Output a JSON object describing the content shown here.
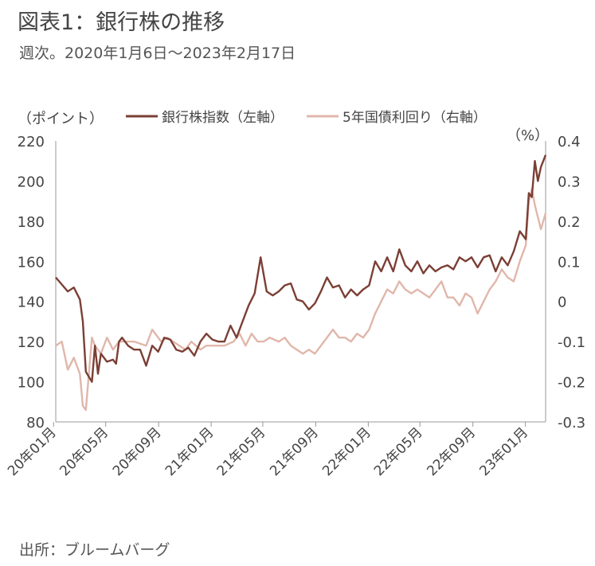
{
  "header": {
    "title": "図表1：銀行株の推移",
    "subtitle": "週次。2020年1月6日～2023年2月17日"
  },
  "footer": {
    "source": "出所：ブルームバーグ"
  },
  "colors": {
    "bank_index": "#7b3f35",
    "jgb_5y": "#e0b7ab",
    "axis": "#999999",
    "text": "#444444"
  },
  "chart_data": {
    "type": "line",
    "x_start": "2020-01-06",
    "x_end": "2023-02-17",
    "x_ticks": [
      "20年01月",
      "20年05月",
      "20年09月",
      "21年01月",
      "21年05月",
      "21年09月",
      "22年01月",
      "22年05月",
      "22年09月",
      "23年01月"
    ],
    "y_left": {
      "label": "（ポイント）",
      "range": [
        80,
        220
      ],
      "ticks": [
        "220",
        "200",
        "180",
        "160",
        "140",
        "120",
        "100",
        "80"
      ]
    },
    "y_right": {
      "label": "（%）",
      "range": [
        -0.3,
        0.4
      ],
      "ticks": [
        "0.4",
        "0.3",
        "0.2",
        "0.1",
        "0",
        "-0.1",
        "-0.2",
        "-0.3"
      ]
    },
    "legend": [
      "銀行株指数（左軸）",
      "5年国債利回り（右軸）"
    ],
    "series": [
      {
        "name": "銀行株指数（左軸）",
        "axis": "left",
        "points": [
          [
            "2020-01-06",
            152
          ],
          [
            "2020-02-03",
            145
          ],
          [
            "2020-02-17",
            147
          ],
          [
            "2020-03-02",
            141
          ],
          [
            "2020-03-09",
            130
          ],
          [
            "2020-03-16",
            105
          ],
          [
            "2020-03-30",
            100
          ],
          [
            "2020-04-06",
            118
          ],
          [
            "2020-04-13",
            104
          ],
          [
            "2020-04-20",
            114
          ],
          [
            "2020-05-04",
            110
          ],
          [
            "2020-05-18",
            111
          ],
          [
            "2020-05-25",
            109
          ],
          [
            "2020-06-01",
            120
          ],
          [
            "2020-06-08",
            122
          ],
          [
            "2020-06-22",
            118
          ],
          [
            "2020-07-06",
            116
          ],
          [
            "2020-07-20",
            116
          ],
          [
            "2020-08-03",
            108
          ],
          [
            "2020-08-17",
            118
          ],
          [
            "2020-08-31",
            115
          ],
          [
            "2020-09-14",
            122
          ],
          [
            "2020-09-28",
            121
          ],
          [
            "2020-10-12",
            116
          ],
          [
            "2020-10-26",
            115
          ],
          [
            "2020-11-09",
            117
          ],
          [
            "2020-11-23",
            113
          ],
          [
            "2020-12-07",
            120
          ],
          [
            "2020-12-21",
            124
          ],
          [
            "2021-01-04",
            121
          ],
          [
            "2021-01-18",
            120
          ],
          [
            "2021-02-01",
            120
          ],
          [
            "2021-02-15",
            128
          ],
          [
            "2021-03-01",
            122
          ],
          [
            "2021-03-15",
            130
          ],
          [
            "2021-03-29",
            138
          ],
          [
            "2021-04-12",
            144
          ],
          [
            "2021-04-26",
            162
          ],
          [
            "2021-05-10",
            145
          ],
          [
            "2021-05-24",
            143
          ],
          [
            "2021-06-07",
            145
          ],
          [
            "2021-06-21",
            148
          ],
          [
            "2021-07-05",
            149
          ],
          [
            "2021-07-19",
            141
          ],
          [
            "2021-08-02",
            140
          ],
          [
            "2021-08-16",
            136
          ],
          [
            "2021-08-30",
            139
          ],
          [
            "2021-09-13",
            145
          ],
          [
            "2021-09-27",
            152
          ],
          [
            "2021-10-11",
            147
          ],
          [
            "2021-10-25",
            148
          ],
          [
            "2021-11-08",
            142
          ],
          [
            "2021-11-22",
            146
          ],
          [
            "2021-12-06",
            143
          ],
          [
            "2021-12-20",
            146
          ],
          [
            "2022-01-03",
            148
          ],
          [
            "2022-01-17",
            160
          ],
          [
            "2022-01-31",
            155
          ],
          [
            "2022-02-14",
            162
          ],
          [
            "2022-02-28",
            155
          ],
          [
            "2022-03-14",
            166
          ],
          [
            "2022-03-28",
            158
          ],
          [
            "2022-04-11",
            155
          ],
          [
            "2022-04-25",
            160
          ],
          [
            "2022-05-09",
            154
          ],
          [
            "2022-05-23",
            158
          ],
          [
            "2022-06-06",
            155
          ],
          [
            "2022-06-20",
            157
          ],
          [
            "2022-07-04",
            158
          ],
          [
            "2022-07-18",
            156
          ],
          [
            "2022-08-01",
            162
          ],
          [
            "2022-08-15",
            160
          ],
          [
            "2022-08-29",
            162
          ],
          [
            "2022-09-12",
            157
          ],
          [
            "2022-09-26",
            162
          ],
          [
            "2022-10-10",
            163
          ],
          [
            "2022-10-24",
            155
          ],
          [
            "2022-11-07",
            162
          ],
          [
            "2022-11-21",
            158
          ],
          [
            "2022-12-05",
            165
          ],
          [
            "2022-12-19",
            175
          ],
          [
            "2023-01-02",
            171
          ],
          [
            "2023-01-09",
            194
          ],
          [
            "2023-01-16",
            192
          ],
          [
            "2023-01-23",
            210
          ],
          [
            "2023-01-30",
            200
          ],
          [
            "2023-02-06",
            207
          ],
          [
            "2023-02-17",
            213
          ]
        ]
      },
      {
        "name": "5年国債利回り（右軸）",
        "axis": "right",
        "points": [
          [
            "2020-01-06",
            -0.11
          ],
          [
            "2020-01-20",
            -0.1
          ],
          [
            "2020-02-03",
            -0.17
          ],
          [
            "2020-02-17",
            -0.14
          ],
          [
            "2020-03-02",
            -0.18
          ],
          [
            "2020-03-09",
            -0.26
          ],
          [
            "2020-03-16",
            -0.27
          ],
          [
            "2020-03-30",
            -0.09
          ],
          [
            "2020-04-06",
            -0.11
          ],
          [
            "2020-04-20",
            -0.13
          ],
          [
            "2020-05-04",
            -0.09
          ],
          [
            "2020-05-18",
            -0.12
          ],
          [
            "2020-06-01",
            -0.1
          ],
          [
            "2020-06-15",
            -0.1
          ],
          [
            "2020-07-06",
            -0.1
          ],
          [
            "2020-08-03",
            -0.11
          ],
          [
            "2020-08-17",
            -0.07
          ],
          [
            "2020-09-07",
            -0.1
          ],
          [
            "2020-09-21",
            -0.09
          ],
          [
            "2020-10-05",
            -0.1
          ],
          [
            "2020-10-19",
            -0.11
          ],
          [
            "2020-11-02",
            -0.12
          ],
          [
            "2020-11-16",
            -0.1
          ],
          [
            "2020-12-07",
            -0.12
          ],
          [
            "2020-12-21",
            -0.11
          ],
          [
            "2021-01-04",
            -0.11
          ],
          [
            "2021-02-01",
            -0.11
          ],
          [
            "2021-02-22",
            -0.1
          ],
          [
            "2021-03-08",
            -0.08
          ],
          [
            "2021-03-22",
            -0.11
          ],
          [
            "2021-04-05",
            -0.08
          ],
          [
            "2021-04-19",
            -0.1
          ],
          [
            "2021-05-03",
            -0.1
          ],
          [
            "2021-05-17",
            -0.09
          ],
          [
            "2021-06-07",
            -0.1
          ],
          [
            "2021-06-21",
            -0.09
          ],
          [
            "2021-07-05",
            -0.11
          ],
          [
            "2021-07-19",
            -0.12
          ],
          [
            "2021-08-02",
            -0.13
          ],
          [
            "2021-08-16",
            -0.12
          ],
          [
            "2021-08-30",
            -0.13
          ],
          [
            "2021-09-13",
            -0.11
          ],
          [
            "2021-09-27",
            -0.09
          ],
          [
            "2021-10-11",
            -0.07
          ],
          [
            "2021-10-25",
            -0.09
          ],
          [
            "2021-11-08",
            -0.09
          ],
          [
            "2021-11-22",
            -0.1
          ],
          [
            "2021-12-06",
            -0.08
          ],
          [
            "2021-12-20",
            -0.09
          ],
          [
            "2022-01-03",
            -0.07
          ],
          [
            "2022-01-17",
            -0.03
          ],
          [
            "2022-01-31",
            0.0
          ],
          [
            "2022-02-14",
            0.03
          ],
          [
            "2022-02-28",
            0.02
          ],
          [
            "2022-03-14",
            0.05
          ],
          [
            "2022-03-28",
            0.03
          ],
          [
            "2022-04-11",
            0.02
          ],
          [
            "2022-04-25",
            0.03
          ],
          [
            "2022-05-09",
            0.02
          ],
          [
            "2022-05-23",
            0.01
          ],
          [
            "2022-06-06",
            0.03
          ],
          [
            "2022-06-20",
            0.05
          ],
          [
            "2022-07-04",
            0.01
          ],
          [
            "2022-07-18",
            0.01
          ],
          [
            "2022-08-01",
            -0.01
          ],
          [
            "2022-08-15",
            0.02
          ],
          [
            "2022-08-29",
            0.01
          ],
          [
            "2022-09-12",
            -0.03
          ],
          [
            "2022-09-26",
            0.0
          ],
          [
            "2022-10-10",
            0.03
          ],
          [
            "2022-10-24",
            0.05
          ],
          [
            "2022-11-07",
            0.08
          ],
          [
            "2022-11-21",
            0.06
          ],
          [
            "2022-12-05",
            0.05
          ],
          [
            "2022-12-19",
            0.1
          ],
          [
            "2023-01-02",
            0.14
          ],
          [
            "2023-01-09",
            0.25
          ],
          [
            "2023-01-16",
            0.28
          ],
          [
            "2023-01-23",
            0.24
          ],
          [
            "2023-01-30",
            0.21
          ],
          [
            "2023-02-06",
            0.18
          ],
          [
            "2023-02-17",
            0.22
          ]
        ]
      }
    ]
  }
}
